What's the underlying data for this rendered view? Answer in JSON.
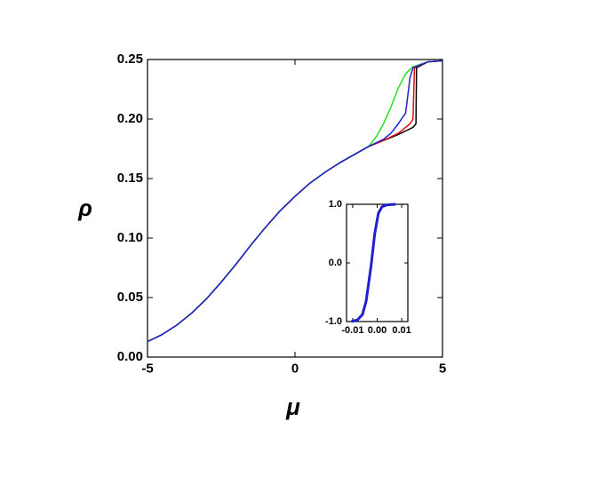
{
  "chart_data": [
    {
      "type": "line",
      "x_label": "μ",
      "y_label": "ρ",
      "xlim": [
        -5,
        5
      ],
      "ylim": [
        0,
        0.25
      ],
      "xticks": [
        -5,
        0,
        5
      ],
      "yticks": [
        {
          "value": 0,
          "label": "0.00"
        },
        0.05,
        {
          "value": 0.1,
          "label": "0.10"
        },
        0.15,
        {
          "value": 0.2,
          "label": "0.20"
        },
        0.25
      ],
      "series": [
        {
          "color": "#000000",
          "x": [
            -5,
            -4.5,
            -4,
            -3.5,
            -3,
            -2.5,
            -2,
            -1.5,
            -1,
            -0.5,
            0,
            0.5,
            1,
            1.5,
            2,
            2.5,
            3,
            3.5,
            4,
            4.1,
            4.12,
            4.5,
            5
          ],
          "values": [
            0.013,
            0.019,
            0.027,
            0.037,
            0.049,
            0.063,
            0.078,
            0.094,
            0.109,
            0.123,
            0.135,
            0.146,
            0.155,
            0.163,
            0.17,
            0.177,
            0.182,
            0.187,
            0.193,
            0.196,
            0.243,
            0.248,
            0.249
          ]
        },
        {
          "color": "#e01010",
          "x": [
            -5,
            -4.5,
            -4,
            -3.5,
            -3,
            -2.5,
            -2,
            -1.5,
            -1,
            -0.5,
            0,
            0.5,
            1,
            1.5,
            2,
            2.5,
            3,
            3.5,
            3.9,
            4,
            4.05,
            4.5,
            5
          ],
          "values": [
            0.013,
            0.019,
            0.027,
            0.037,
            0.049,
            0.063,
            0.078,
            0.094,
            0.109,
            0.123,
            0.135,
            0.146,
            0.155,
            0.163,
            0.17,
            0.177,
            0.182,
            0.188,
            0.196,
            0.2,
            0.243,
            0.248,
            0.249
          ]
        },
        {
          "color": "#20e020",
          "x": [
            -5,
            -4.5,
            -4,
            -3.5,
            -3,
            -2.5,
            -2,
            -1.5,
            -1,
            -0.5,
            0,
            0.5,
            1,
            1.5,
            2,
            2.5,
            2.75,
            3,
            3.25,
            3.5,
            3.75,
            4,
            4.5,
            5
          ],
          "values": [
            0.013,
            0.019,
            0.027,
            0.037,
            0.049,
            0.063,
            0.078,
            0.094,
            0.109,
            0.123,
            0.135,
            0.146,
            0.155,
            0.163,
            0.17,
            0.177,
            0.185,
            0.196,
            0.21,
            0.226,
            0.238,
            0.244,
            0.248,
            0.249
          ]
        },
        {
          "color": "#2020d0",
          "x": [
            -5,
            -4.5,
            -4,
            -3.5,
            -3,
            -2.5,
            -2,
            -1.5,
            -1,
            -0.5,
            0,
            0.5,
            1,
            1.5,
            2,
            2.5,
            3,
            3.25,
            3.5,
            3.75,
            3.9,
            4,
            4.5,
            5
          ],
          "values": [
            0.013,
            0.019,
            0.027,
            0.037,
            0.049,
            0.063,
            0.078,
            0.094,
            0.109,
            0.123,
            0.135,
            0.146,
            0.155,
            0.163,
            0.17,
            0.177,
            0.183,
            0.188,
            0.196,
            0.205,
            0.235,
            0.243,
            0.248,
            0.249
          ]
        }
      ]
    },
    {
      "type": "line",
      "xlim": [
        -0.0125,
        0.0125
      ],
      "ylim": [
        -1,
        1
      ],
      "xticks": [
        -0.01,
        {
          "value": 0,
          "label": "0.00"
        },
        0.01
      ],
      "yticks": [
        {
          "value": -1,
          "label": "-1.0"
        },
        {
          "value": 0,
          "label": "0.0"
        },
        {
          "value": 1,
          "label": "1.0"
        }
      ],
      "series": [
        {
          "color": "#2020d0",
          "x": [
            -0.0105,
            -0.008,
            -0.006,
            -0.0045,
            -0.0025,
            -0.001,
            0.0005,
            0.002,
            0.004,
            0.0075
          ],
          "values": [
            -1,
            -0.97,
            -0.88,
            -0.65,
            -0.05,
            0.5,
            0.85,
            0.96,
            0.99,
            1
          ]
        }
      ]
    }
  ]
}
